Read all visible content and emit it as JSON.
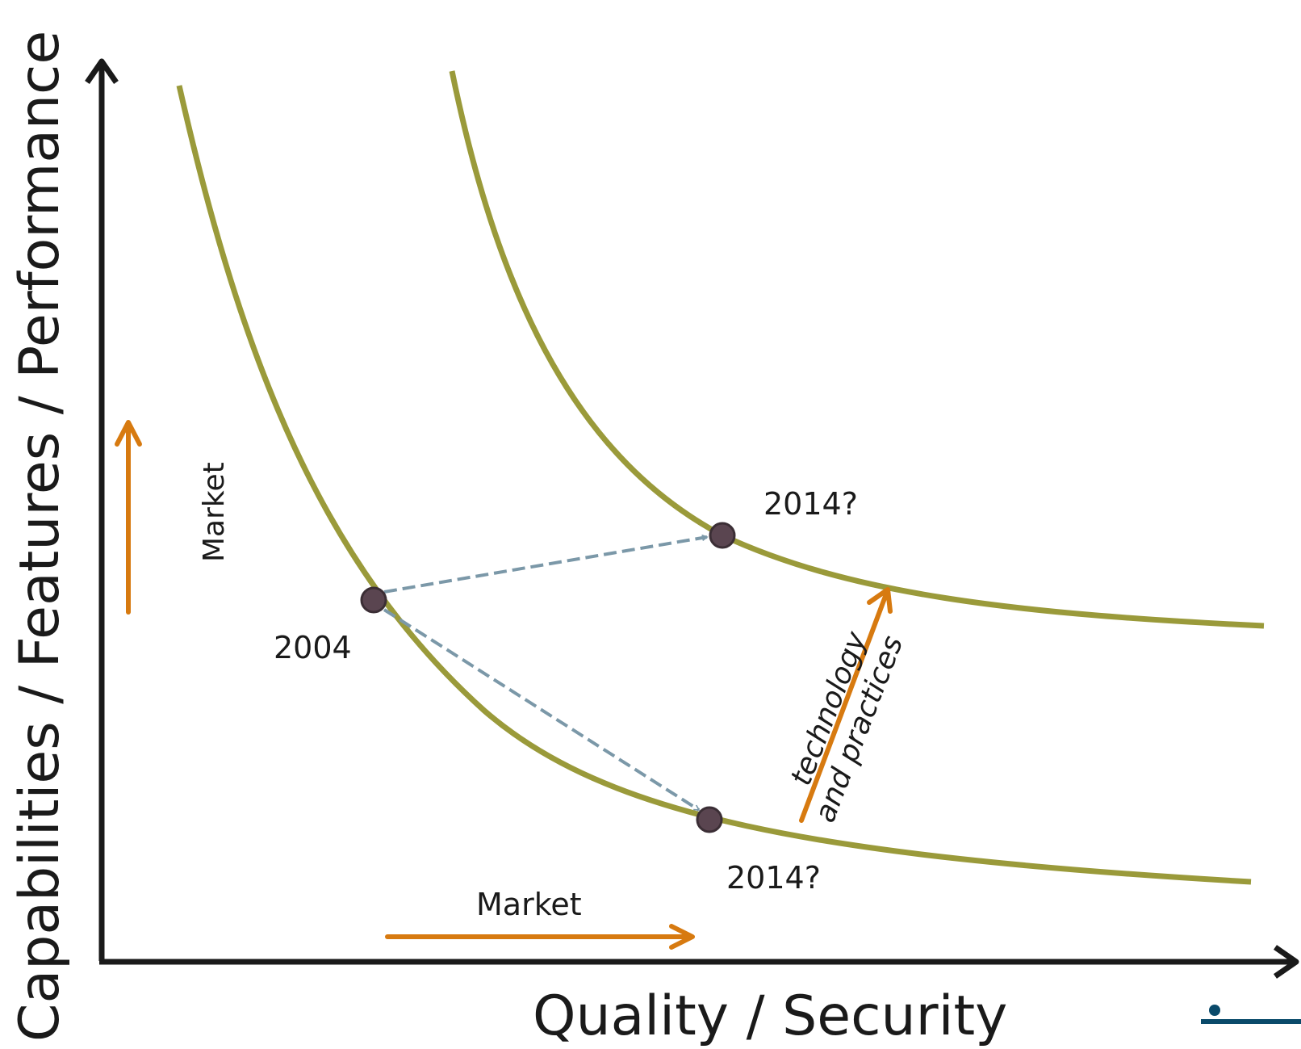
{
  "axes": {
    "x_title": "Quality / Security",
    "y_title": "Capabilities / Features / Performance"
  },
  "labels": {
    "year_start": "2004",
    "year_upper": "2014?",
    "year_lower": "2014?",
    "market_vertical": "Market",
    "market_horizontal": "Market",
    "tech_line1": "technology",
    "tech_line2": "and practices"
  },
  "colors": {
    "curve": "#9a9a3a",
    "point": "#5a4550",
    "dashed_arrow": "#7b98a8",
    "orange_arrow": "#d77a10",
    "axis": "#1a1a1a",
    "logo": "#0a4a6a"
  },
  "icons": {
    "logo": "blue-dot-with-bar-logo"
  }
}
